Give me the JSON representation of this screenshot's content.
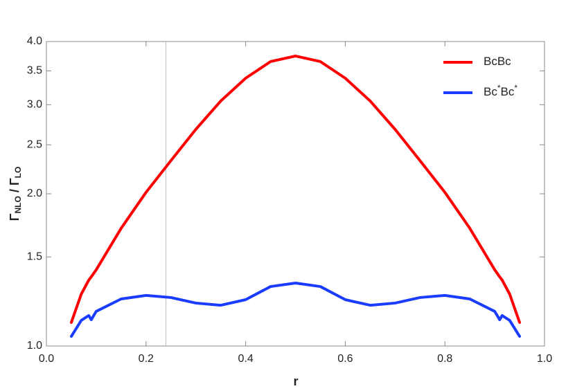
{
  "chart_data": {
    "type": "line",
    "xlabel": "r",
    "ylabel": [
      "Γ",
      "NLO",
      " / Γ",
      "LO"
    ],
    "x": [
      0.05,
      0.07,
      0.085,
      0.09,
      0.1,
      0.15,
      0.2,
      0.25,
      0.3,
      0.35,
      0.4,
      0.45,
      0.5,
      0.55,
      0.6,
      0.65,
      0.7,
      0.75,
      0.8,
      0.85,
      0.9,
      0.91,
      0.915,
      0.93,
      0.95
    ],
    "series": [
      {
        "name": "BcBc",
        "color": "#ff0000",
        "values": [
          1.113,
          1.267,
          1.35,
          1.37,
          1.415,
          1.709,
          2.013,
          2.326,
          2.682,
          3.051,
          3.385,
          3.651,
          3.745,
          3.651,
          3.385,
          3.051,
          2.682,
          2.326,
          2.013,
          1.709,
          1.415,
          1.37,
          1.35,
          1.267,
          1.113
        ]
      },
      {
        "name": "Bc*Bc*",
        "color": "#1a3cff",
        "values": [
          1.045,
          1.124,
          1.149,
          1.127,
          1.171,
          1.239,
          1.259,
          1.247,
          1.216,
          1.204,
          1.235,
          1.311,
          1.332,
          1.311,
          1.235,
          1.204,
          1.216,
          1.247,
          1.259,
          1.239,
          1.171,
          1.127,
          1.149,
          1.124,
          1.045
        ]
      }
    ],
    "xlim": [
      0,
      1
    ],
    "xticks": [
      {
        "value": 0,
        "label": "0.0"
      },
      0.2,
      0.4,
      0.6,
      0.8,
      {
        "value": 1,
        "label": "1.0"
      }
    ],
    "ylim": [
      1,
      4
    ],
    "yticks": [
      {
        "value": 1,
        "label": "1.0"
      },
      1.5,
      {
        "value": 2,
        "label": "2.0"
      },
      2.5,
      {
        "value": 3,
        "label": "3.0"
      },
      3.5,
      {
        "value": 4,
        "label": "4.0"
      }
    ],
    "log_y": true,
    "vline": 0.24,
    "legend": "upper right"
  }
}
